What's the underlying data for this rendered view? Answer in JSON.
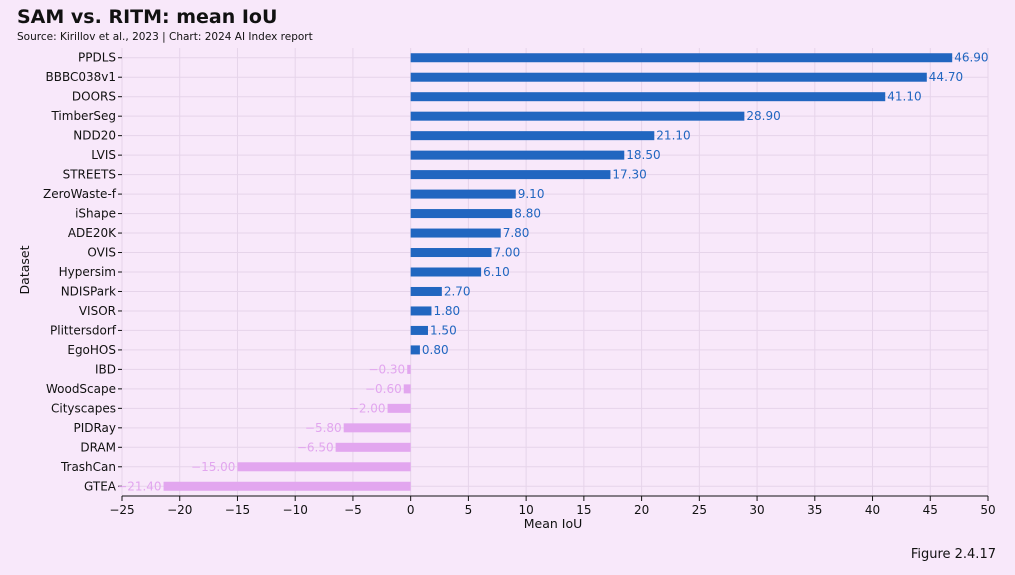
{
  "title": "SAM vs. RITM: mean IoU",
  "subtitle": "Source: Kirillov et al., 2023 | Chart: 2024 AI Index report",
  "figure_label": "Figure 2.4.17",
  "colors": {
    "positive": "#2166c0",
    "negative": "#e2a6ef",
    "grid": "#e6d4ea",
    "background": "#f8e8fa"
  },
  "chart_data": {
    "type": "bar",
    "orientation": "horizontal",
    "xlabel": "Mean IoU",
    "ylabel": "Dataset",
    "xlim": [
      -25,
      50
    ],
    "xticks": [
      -25,
      -20,
      -15,
      -10,
      -5,
      0,
      5,
      10,
      15,
      20,
      25,
      30,
      35,
      40,
      45,
      50
    ],
    "grid": true,
    "categories": [
      "PPDLS",
      "BBBC038v1",
      "DOORS",
      "TimberSeg",
      "NDD20",
      "LVIS",
      "STREETS",
      "ZeroWaste-f",
      "iShape",
      "ADE20K",
      "OVIS",
      "Hypersim",
      "NDISPark",
      "VISOR",
      "Plittersdorf",
      "EgoHOS",
      "IBD",
      "WoodScape",
      "Cityscapes",
      "PIDRay",
      "DRAM",
      "TrashCan",
      "GTEA"
    ],
    "values": [
      46.9,
      44.7,
      41.1,
      28.9,
      21.1,
      18.5,
      17.3,
      9.1,
      8.8,
      7.8,
      7.0,
      6.1,
      2.7,
      1.8,
      1.5,
      0.8,
      -0.3,
      -0.6,
      -2.0,
      -5.8,
      -6.5,
      -15.0,
      -21.4
    ],
    "value_labels": [
      "46.90",
      "44.70",
      "41.10",
      "28.90",
      "21.10",
      "18.50",
      "17.30",
      "9.10",
      "8.80",
      "7.80",
      "7.00",
      "6.10",
      "2.70",
      "1.80",
      "1.50",
      "0.80",
      "-0.30",
      "-0.60",
      "-2.00",
      "-5.80",
      "-6.50",
      "-15.00",
      "-21.40"
    ]
  }
}
